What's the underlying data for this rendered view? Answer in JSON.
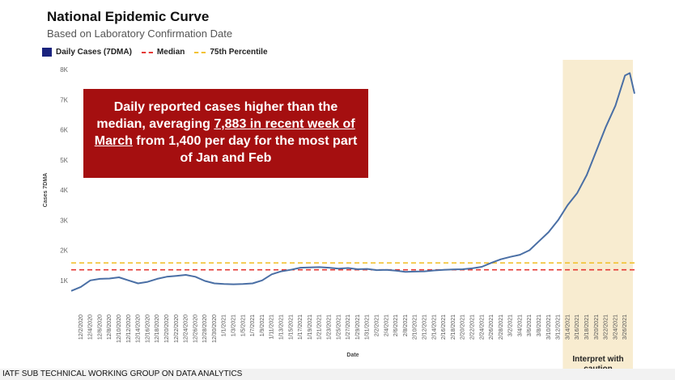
{
  "header": {
    "title": "National Epidemic Curve",
    "subtitle": "Based on Laboratory Confirmation Date"
  },
  "legend": {
    "daily": "Daily Cases (7DMA)",
    "median": "Median",
    "p75": "75th Percentile"
  },
  "callout": {
    "line1_pre": "Daily reported cases higher than the median, averaging ",
    "line1_highlight": "7,883 in recent week of March",
    "line1_post": " from 1,400 per day for the most part of Jan and Feb"
  },
  "caution": "Interpret with caution",
  "footer": "IATF SUB TECHNICAL WORKING GROUP ON DATA ANALYTICS",
  "colors": {
    "series": "#4a6fa5",
    "legend_box": "#1a237e",
    "median": "#e53935",
    "p75": "#f2c232",
    "callout_bg": "#a50f10",
    "caution_bg": "#f8ecd0"
  },
  "chart_data": {
    "type": "line",
    "title": "National Epidemic Curve",
    "subtitle": "Based on Laboratory Confirmation Date",
    "xlabel": "Date",
    "ylabel": "Cases 7DMA",
    "ylim": [
      0,
      8000
    ],
    "yticks": [
      1000,
      2000,
      3000,
      4000,
      5000,
      6000,
      7000,
      8000
    ],
    "ytick_labels": [
      "1K",
      "2K",
      "3K",
      "4K",
      "5K",
      "6K",
      "7K",
      "8K"
    ],
    "x_tick_labels": [
      "12/2/2020",
      "12/4/2020",
      "12/6/2020",
      "12/8/2020",
      "12/10/2020",
      "12/12/2020",
      "12/14/2020",
      "12/16/2020",
      "12/18/2020",
      "12/20/2020",
      "12/22/2020",
      "12/24/2020",
      "12/26/2020",
      "12/28/2020",
      "12/30/2020",
      "1/1/2021",
      "1/3/2021",
      "1/5/2021",
      "1/7/2021",
      "1/9/2021",
      "1/11/2021",
      "1/13/2021",
      "1/15/2021",
      "1/17/2021",
      "1/19/2021",
      "1/21/2021",
      "1/23/2021",
      "1/25/2021",
      "1/27/2021",
      "1/29/2021",
      "1/31/2021",
      "2/2/2021",
      "2/4/2021",
      "2/6/2021",
      "2/8/2021",
      "2/10/2021",
      "2/12/2021",
      "2/14/2021",
      "2/16/2021",
      "2/18/2021",
      "2/20/2021",
      "2/22/2021",
      "2/24/2021",
      "2/26/2021",
      "2/28/2021",
      "3/2/2021",
      "3/4/2021",
      "3/6/2021",
      "3/8/2021",
      "3/10/2021",
      "3/12/2021",
      "3/14/2021",
      "3/16/2021",
      "3/18/2021",
      "3/20/2021",
      "3/22/2021",
      "3/24/2021",
      "3/26/2021"
    ],
    "series": [
      {
        "name": "Daily Cases (7DMA)",
        "x": [
          "11/30/2020",
          "12/2/2020",
          "12/4/2020",
          "12/6/2020",
          "12/8/2020",
          "12/10/2020",
          "12/12/2020",
          "12/14/2020",
          "12/16/2020",
          "12/18/2020",
          "12/20/2020",
          "12/22/2020",
          "12/24/2020",
          "12/26/2020",
          "12/28/2020",
          "12/30/2020",
          "1/1/2021",
          "1/3/2021",
          "1/5/2021",
          "1/7/2021",
          "1/9/2021",
          "1/11/2021",
          "1/13/2021",
          "1/15/2021",
          "1/17/2021",
          "1/19/2021",
          "1/21/2021",
          "1/23/2021",
          "1/25/2021",
          "1/27/2021",
          "1/29/2021",
          "1/31/2021",
          "2/2/2021",
          "2/4/2021",
          "2/6/2021",
          "2/8/2021",
          "2/10/2021",
          "2/12/2021",
          "2/14/2021",
          "2/16/2021",
          "2/18/2021",
          "2/20/2021",
          "2/22/2021",
          "2/24/2021",
          "2/26/2021",
          "2/28/2021",
          "3/2/2021",
          "3/4/2021",
          "3/6/2021",
          "3/8/2021",
          "3/10/2021",
          "3/12/2021",
          "3/14/2021",
          "3/16/2021",
          "3/18/2021",
          "3/20/2021",
          "3/22/2021",
          "3/24/2021",
          "3/26/2021",
          "3/27/2021",
          "3/28/2021"
        ],
        "values": [
          650,
          780,
          1000,
          1050,
          1060,
          1100,
          1000,
          900,
          950,
          1050,
          1120,
          1150,
          1180,
          1120,
          980,
          900,
          880,
          870,
          880,
          900,
          1000,
          1200,
          1300,
          1350,
          1420,
          1430,
          1440,
          1420,
          1390,
          1410,
          1370,
          1380,
          1340,
          1350,
          1320,
          1280,
          1290,
          1300,
          1330,
          1350,
          1360,
          1370,
          1400,
          1450,
          1580,
          1700,
          1780,
          1850,
          2000,
          2300,
          2600,
          3000,
          3500,
          3900,
          4500,
          5300,
          6100,
          6800,
          7800,
          7883,
          7200
        ]
      }
    ],
    "reference_lines": [
      {
        "name": "Median",
        "value": 1350
      },
      {
        "name": "75th Percentile",
        "value": 1580
      }
    ],
    "shaded_region": {
      "from": "3/14/2021",
      "to": "3/28/2021",
      "label": "Interpret with caution"
    },
    "grid": false,
    "legend_position": "top-left"
  }
}
